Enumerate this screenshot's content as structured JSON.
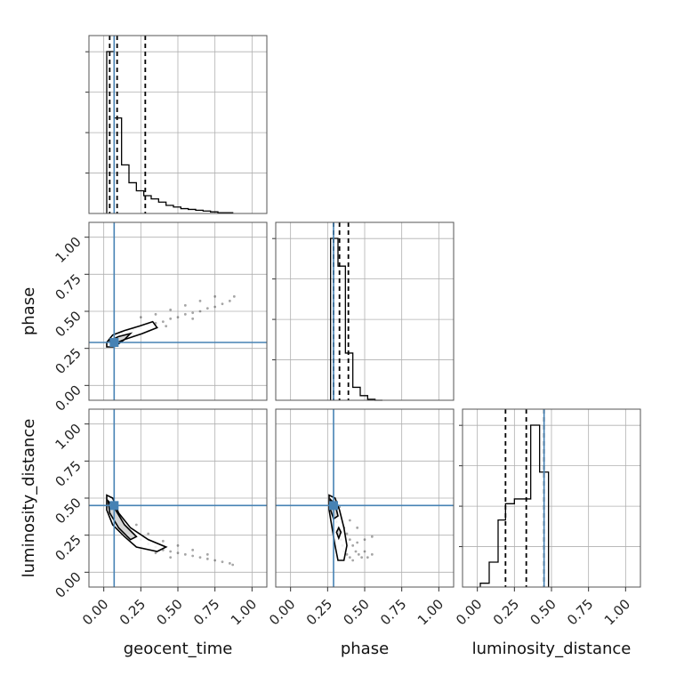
{
  "chart_data": {
    "type": "scatter",
    "subtype": "corner-plot",
    "parameters": [
      "geocent_time",
      "phase",
      "luminosity_distance"
    ],
    "axis_range": [
      -0.1,
      1.1
    ],
    "ticks": [
      0.0,
      0.25,
      0.5,
      0.75,
      1.0
    ],
    "tick_labels": [
      "0.00",
      "0.25",
      "0.50",
      "0.75",
      "1.00"
    ],
    "xlabels": [
      "geocent_time",
      "phase",
      "luminosity_distance"
    ],
    "ylabels": [
      "",
      "phase",
      "luminosity_distance"
    ],
    "grid": true,
    "truths": {
      "geocent_time": 0.07,
      "phase": 0.29,
      "luminosity_distance": 0.45
    },
    "truth_color": "#4682b4",
    "quantiles": {
      "geocent_time": [
        0.04,
        0.09,
        0.28
      ],
      "phase": [
        0.29,
        0.33,
        0.39
      ],
      "luminosity_distance": [
        0.19,
        0.33,
        0.45
      ]
    },
    "histograms": {
      "geocent_time": {
        "bin_edges": [
          0.02,
          0.07,
          0.12,
          0.17,
          0.22,
          0.27,
          0.32,
          0.37,
          0.42,
          0.47,
          0.52,
          0.57,
          0.62,
          0.67,
          0.72,
          0.77,
          0.82,
          0.87
        ],
        "counts": [
          200,
          118,
          60,
          38,
          28,
          22,
          18,
          14,
          10,
          8,
          6,
          5,
          4,
          3,
          2,
          1,
          1
        ]
      },
      "phase": {
        "bin_edges": [
          0.27,
          0.32,
          0.37,
          0.42,
          0.47,
          0.52,
          0.57,
          0.62
        ],
        "counts": [
          175,
          145,
          51,
          14,
          5,
          1,
          0
        ]
      },
      "luminosity_distance": {
        "bin_edges": [
          0.02,
          0.08,
          0.14,
          0.19,
          0.25,
          0.31,
          0.36,
          0.42,
          0.48
        ],
        "counts": [
          4,
          26,
          70,
          87,
          92,
          92,
          169,
          120
        ]
      }
    },
    "scatter_points": {
      "phase_vs_geocent_time": [
        [
          0.03,
          0.29
        ],
        [
          0.05,
          0.31
        ],
        [
          0.08,
          0.33
        ],
        [
          0.12,
          0.36
        ],
        [
          0.16,
          0.37
        ],
        [
          0.2,
          0.38
        ],
        [
          0.25,
          0.39
        ],
        [
          0.3,
          0.41
        ],
        [
          0.35,
          0.42
        ],
        [
          0.4,
          0.43
        ],
        [
          0.45,
          0.45
        ],
        [
          0.5,
          0.46
        ],
        [
          0.55,
          0.48
        ],
        [
          0.6,
          0.49
        ],
        [
          0.65,
          0.5
        ],
        [
          0.7,
          0.52
        ],
        [
          0.75,
          0.53
        ],
        [
          0.8,
          0.55
        ],
        [
          0.85,
          0.57
        ],
        [
          0.88,
          0.6
        ],
        [
          0.25,
          0.46
        ],
        [
          0.35,
          0.48
        ],
        [
          0.45,
          0.51
        ],
        [
          0.55,
          0.54
        ],
        [
          0.65,
          0.57
        ],
        [
          0.75,
          0.6
        ],
        [
          0.2,
          0.34
        ],
        [
          0.3,
          0.37
        ],
        [
          0.42,
          0.4
        ],
        [
          0.6,
          0.45
        ]
      ],
      "luminosity_distance_vs_geocent_time": [
        [
          0.03,
          0.48
        ],
        [
          0.05,
          0.44
        ],
        [
          0.08,
          0.4
        ],
        [
          0.12,
          0.35
        ],
        [
          0.16,
          0.3
        ],
        [
          0.2,
          0.26
        ],
        [
          0.25,
          0.22
        ],
        [
          0.3,
          0.19
        ],
        [
          0.35,
          0.17
        ],
        [
          0.4,
          0.15
        ],
        [
          0.45,
          0.14
        ],
        [
          0.5,
          0.13
        ],
        [
          0.55,
          0.12
        ],
        [
          0.6,
          0.11
        ],
        [
          0.65,
          0.1
        ],
        [
          0.7,
          0.09
        ],
        [
          0.75,
          0.08
        ],
        [
          0.8,
          0.07
        ],
        [
          0.85,
          0.06
        ],
        [
          0.87,
          0.05
        ],
        [
          0.22,
          0.32
        ],
        [
          0.3,
          0.26
        ],
        [
          0.4,
          0.21
        ],
        [
          0.5,
          0.18
        ],
        [
          0.6,
          0.15
        ],
        [
          0.7,
          0.12
        ],
        [
          0.15,
          0.24
        ],
        [
          0.25,
          0.17
        ],
        [
          0.35,
          0.13
        ],
        [
          0.45,
          0.1
        ]
      ],
      "luminosity_distance_vs_phase": [
        [
          0.27,
          0.5
        ],
        [
          0.28,
          0.45
        ],
        [
          0.29,
          0.42
        ],
        [
          0.3,
          0.38
        ],
        [
          0.31,
          0.34
        ],
        [
          0.32,
          0.3
        ],
        [
          0.33,
          0.26
        ],
        [
          0.34,
          0.22
        ],
        [
          0.35,
          0.18
        ],
        [
          0.36,
          0.14
        ],
        [
          0.38,
          0.12
        ],
        [
          0.4,
          0.1
        ],
        [
          0.42,
          0.08
        ],
        [
          0.36,
          0.3
        ],
        [
          0.38,
          0.26
        ],
        [
          0.4,
          0.22
        ],
        [
          0.42,
          0.18
        ],
        [
          0.44,
          0.14
        ],
        [
          0.46,
          0.12
        ],
        [
          0.48,
          0.1
        ],
        [
          0.5,
          0.14
        ],
        [
          0.52,
          0.1
        ],
        [
          0.55,
          0.12
        ],
        [
          0.45,
          0.2
        ],
        [
          0.5,
          0.22
        ],
        [
          0.55,
          0.24
        ],
        [
          0.3,
          0.47
        ],
        [
          0.33,
          0.44
        ],
        [
          0.4,
          0.35
        ],
        [
          0.45,
          0.3
        ]
      ]
    },
    "contours": {
      "phase_vs_geocent_time": [
        [
          [
            0.02,
            0.29
          ],
          [
            0.06,
            0.34
          ],
          [
            0.14,
            0.37
          ],
          [
            0.24,
            0.4
          ],
          [
            0.33,
            0.43
          ],
          [
            0.36,
            0.39
          ],
          [
            0.26,
            0.35
          ],
          [
            0.14,
            0.31
          ],
          [
            0.07,
            0.26
          ],
          [
            0.02,
            0.26
          ]
        ],
        [
          [
            0.04,
            0.3
          ],
          [
            0.1,
            0.33
          ],
          [
            0.18,
            0.35
          ],
          [
            0.14,
            0.31
          ],
          [
            0.07,
            0.28
          ]
        ]
      ],
      "luminosity_distance_vs_geocent_time": [
        [
          [
            0.02,
            0.52
          ],
          [
            0.06,
            0.5
          ],
          [
            0.1,
            0.4
          ],
          [
            0.18,
            0.3
          ],
          [
            0.3,
            0.22
          ],
          [
            0.42,
            0.17
          ],
          [
            0.36,
            0.14
          ],
          [
            0.22,
            0.17
          ],
          [
            0.14,
            0.24
          ],
          [
            0.06,
            0.32
          ],
          [
            0.02,
            0.42
          ]
        ],
        [
          [
            0.03,
            0.48
          ],
          [
            0.08,
            0.42
          ],
          [
            0.14,
            0.32
          ],
          [
            0.22,
            0.24
          ],
          [
            0.18,
            0.22
          ],
          [
            0.1,
            0.3
          ],
          [
            0.04,
            0.4
          ]
        ]
      ],
      "luminosity_distance_vs_phase": [
        [
          [
            0.26,
            0.52
          ],
          [
            0.3,
            0.5
          ],
          [
            0.33,
            0.42
          ],
          [
            0.36,
            0.3
          ],
          [
            0.38,
            0.18
          ],
          [
            0.36,
            0.08
          ],
          [
            0.32,
            0.08
          ],
          [
            0.3,
            0.18
          ],
          [
            0.28,
            0.3
          ],
          [
            0.26,
            0.42
          ]
        ],
        [
          [
            0.27,
            0.49
          ],
          [
            0.3,
            0.46
          ],
          [
            0.32,
            0.38
          ],
          [
            0.29,
            0.36
          ],
          [
            0.27,
            0.42
          ]
        ],
        [
          [
            0.325,
            0.3
          ],
          [
            0.34,
            0.27
          ],
          [
            0.325,
            0.23
          ],
          [
            0.31,
            0.27
          ]
        ]
      ]
    }
  }
}
